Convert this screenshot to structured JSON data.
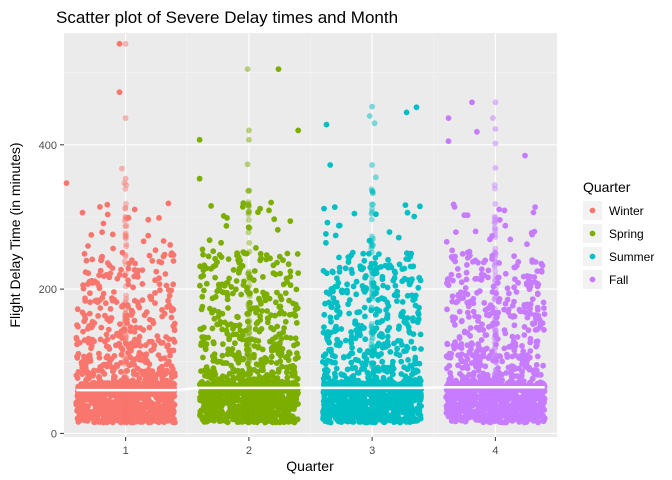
{
  "chart_data": {
    "type": "scatter",
    "title": "Scatter plot of Severe Delay times and Month",
    "xlabel": "Quarter",
    "ylabel": "Flight Delay Time (in minutes)",
    "x_ticks": [
      "1",
      "2",
      "3",
      "4"
    ],
    "y_ticks": [
      0,
      200,
      400
    ],
    "xlim": [
      0.5,
      4.5
    ],
    "ylim": [
      -5,
      555
    ],
    "grid": true,
    "legend": {
      "title": "Quarter",
      "position": "right"
    },
    "series": [
      {
        "name": "Winter",
        "quarter": 1,
        "color": "#F8766D",
        "mean": 60,
        "notable_points": [
          [
            1.0,
            540
          ],
          [
            0.95,
            540
          ],
          [
            0.95,
            473
          ],
          [
            1.0,
            437
          ],
          [
            0.97,
            367
          ],
          [
            1.0,
            353
          ],
          [
            0.99,
            347
          ],
          [
            0.52,
            347
          ],
          [
            0.65,
            306
          ],
          [
            0.82,
            291
          ]
        ]
      },
      {
        "name": "Spring",
        "quarter": 2,
        "color": "#7CAE00",
        "mean": 63,
        "notable_points": [
          [
            1.99,
            505
          ],
          [
            2.24,
            505
          ],
          [
            2.4,
            420
          ],
          [
            2.0,
            420
          ],
          [
            2.0,
            407
          ],
          [
            1.6,
            407
          ],
          [
            1.99,
            373
          ],
          [
            1.6,
            353
          ],
          [
            2.18,
            320
          ]
        ]
      },
      {
        "name": "Summer",
        "quarter": 3,
        "color": "#00BFC4",
        "mean": 63,
        "notable_points": [
          [
            3.0,
            453
          ],
          [
            3.36,
            452
          ],
          [
            3.28,
            445
          ],
          [
            2.98,
            440
          ],
          [
            3.02,
            430
          ],
          [
            2.63,
            428
          ],
          [
            3.0,
            372
          ],
          [
            2.66,
            372
          ],
          [
            3.03,
            355
          ]
        ]
      },
      {
        "name": "Fall",
        "quarter": 4,
        "color": "#C77CFF",
        "mean": 64,
        "notable_points": [
          [
            3.81,
            459
          ],
          [
            4.0,
            459
          ],
          [
            3.98,
            437
          ],
          [
            3.62,
            437
          ],
          [
            4.0,
            422
          ],
          [
            3.85,
            418
          ],
          [
            3.62,
            405
          ],
          [
            4.0,
            402
          ],
          [
            4.24,
            385
          ],
          [
            4.0,
            368
          ]
        ]
      }
    ]
  }
}
